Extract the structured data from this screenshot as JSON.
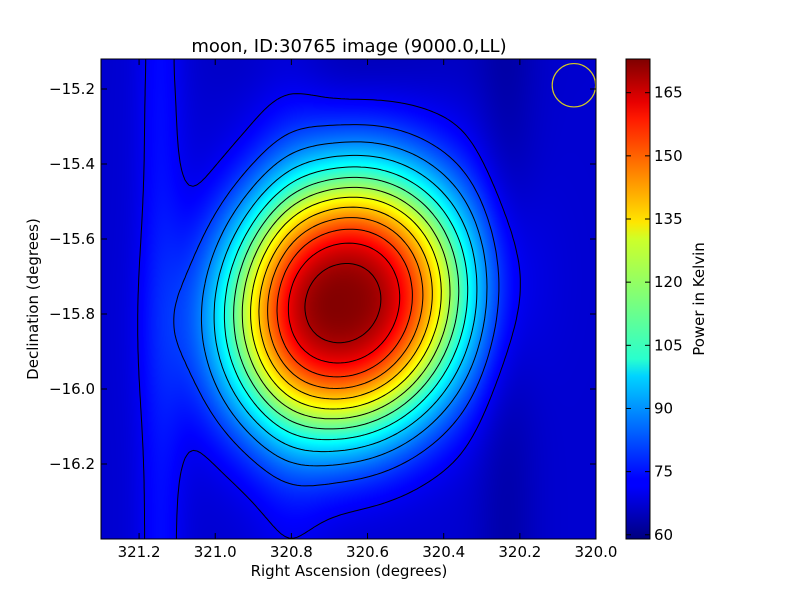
{
  "chart_data": {
    "type": "heatmap",
    "title": "moon, ID:30765 image (9000.0,LL)",
    "xlabel": "Right Ascension (degrees)",
    "ylabel": "Declination (degrees)",
    "colorbar_label": "Power in Kelvin",
    "colormap": "jet",
    "xlim": [
      321.3,
      320.0
    ],
    "ylim": [
      -16.4,
      -15.12
    ],
    "x_ticks": [
      321.2,
      321.0,
      320.8,
      320.6,
      320.4,
      320.2,
      320.0
    ],
    "x_tick_labels": [
      "321.2",
      "321.0",
      "320.8",
      "320.6",
      "320.4",
      "320.2",
      "320.0"
    ],
    "y_ticks": [
      -15.2,
      -15.4,
      -15.6,
      -15.8,
      -16.0,
      -16.2
    ],
    "y_tick_labels": [
      "−15.2",
      "−15.4",
      "−15.6",
      "−15.8",
      "−16.0",
      "−16.2"
    ],
    "colorbar_range": [
      59,
      173
    ],
    "colorbar_ticks": [
      60,
      75,
      90,
      105,
      120,
      135,
      150,
      165
    ],
    "colorbar_tick_labels": [
      "60",
      "75",
      "90",
      "105",
      "120",
      "135",
      "150",
      "165"
    ],
    "source": {
      "center_ra": 320.655,
      "center_dec": -15.77,
      "peak_kelvin": 172,
      "background_kelvin": 68,
      "contour_step_kelvin": 8
    },
    "beam": {
      "ra": 320.058,
      "dec": -15.19,
      "radius_deg": 0.057,
      "color": "#d4c825"
    },
    "colors": {
      "contour": "#000000",
      "frame": "#000000"
    }
  }
}
